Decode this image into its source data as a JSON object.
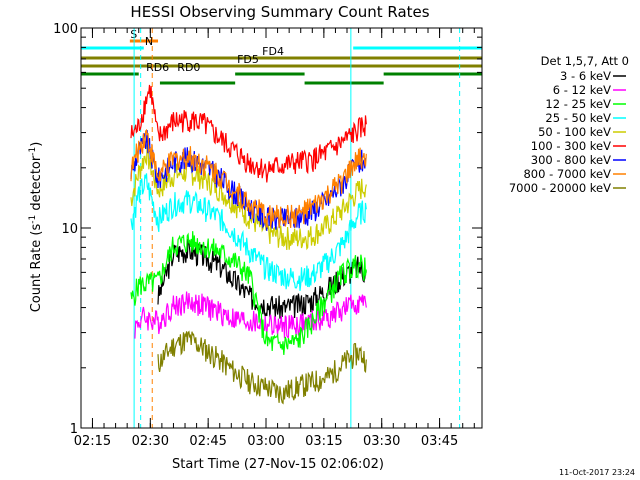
{
  "chart_data": {
    "type": "line",
    "title": "HESSI Observing Summary Count Rates",
    "xlabel": "Start Time (27-Nov-15 02:06:02)",
    "ylabel_main": "Count Rate (s",
    "ylabel_sup1": "-1",
    "ylabel_mid": " detector",
    "ylabel_sup2": "-1",
    "ylabel_end": ")",
    "yscale": "log",
    "ylim": [
      1,
      100
    ],
    "xlim_min": [
      6.03,
      110
    ],
    "y_ticks": [
      {
        "v": 1,
        "label": "1"
      },
      {
        "v": 10,
        "label": "10"
      },
      {
        "v": 100,
        "label": "100"
      }
    ],
    "x_ticks": [
      {
        "v": 9,
        "label": "02:15"
      },
      {
        "v": 24,
        "label": "02:30"
      },
      {
        "v": 39,
        "label": "02:45"
      },
      {
        "v": 54,
        "label": "03:00"
      },
      {
        "v": 69,
        "label": "03:15"
      },
      {
        "v": 84,
        "label": "03:30"
      },
      {
        "v": 99,
        "label": "03:45"
      }
    ],
    "legend_title": "Det 1,5,7, Att 0",
    "legend_position": "right",
    "series": [
      {
        "name": "3 - 6 keV",
        "color": "#000000",
        "points": [
          [
            26,
            4.5
          ],
          [
            30,
            7.5
          ],
          [
            34,
            7.8
          ],
          [
            38,
            7.2
          ],
          [
            42,
            6.5
          ],
          [
            46,
            5.4
          ],
          [
            50,
            4.5
          ],
          [
            54,
            4.2
          ],
          [
            58,
            4.0
          ],
          [
            62,
            4.1
          ],
          [
            66,
            4.4
          ],
          [
            70,
            5.0
          ],
          [
            74,
            5.8
          ],
          [
            78,
            6.4
          ],
          [
            80,
            6.0
          ]
        ]
      },
      {
        "name": "6 - 12 keV",
        "color": "#ff00ff",
        "points": [
          [
            20,
            3.2
          ],
          [
            22,
            3.6
          ],
          [
            26,
            3.4
          ],
          [
            30,
            4.1
          ],
          [
            34,
            4.3
          ],
          [
            38,
            4.1
          ],
          [
            42,
            3.8
          ],
          [
            46,
            3.5
          ],
          [
            50,
            3.4
          ],
          [
            54,
            3.3
          ],
          [
            58,
            3.2
          ],
          [
            62,
            3.3
          ],
          [
            66,
            3.4
          ],
          [
            70,
            3.6
          ],
          [
            74,
            3.9
          ],
          [
            78,
            4.3
          ],
          [
            80,
            4.0
          ]
        ]
      },
      {
        "name": "12 - 25 keV",
        "color": "#00ff00",
        "points": [
          [
            19,
            4.3
          ],
          [
            21,
            5.2
          ],
          [
            26,
            5.4
          ],
          [
            30,
            8.2
          ],
          [
            34,
            8.6
          ],
          [
            38,
            8.2
          ],
          [
            42,
            7.6
          ],
          [
            46,
            6.8
          ],
          [
            50,
            5.6
          ],
          [
            54,
            2.7
          ],
          [
            58,
            2.6
          ],
          [
            62,
            2.7
          ],
          [
            66,
            3.4
          ],
          [
            70,
            4.6
          ],
          [
            74,
            6.0
          ],
          [
            78,
            6.6
          ],
          [
            80,
            6.2
          ]
        ]
      },
      {
        "name": "25 - 50 keV",
        "color": "#00ffff",
        "points": [
          [
            19,
            10.5
          ],
          [
            21,
            15
          ],
          [
            23,
            17
          ],
          [
            26,
            11
          ],
          [
            30,
            13.2
          ],
          [
            34,
            13.8
          ],
          [
            38,
            12.6
          ],
          [
            42,
            11.2
          ],
          [
            46,
            9.4
          ],
          [
            50,
            7.6
          ],
          [
            54,
            6.3
          ],
          [
            58,
            5.8
          ],
          [
            62,
            5.6
          ],
          [
            66,
            5.8
          ],
          [
            70,
            6.8
          ],
          [
            74,
            8.4
          ],
          [
            78,
            11.8
          ],
          [
            80,
            12.4
          ]
        ]
      },
      {
        "name": "50 - 100 keV",
        "color": "#cccc00",
        "points": [
          [
            19,
            14
          ],
          [
            21,
            19
          ],
          [
            23,
            24
          ],
          [
            26,
            15.5
          ],
          [
            30,
            18.5
          ],
          [
            34,
            19.2
          ],
          [
            38,
            17.6
          ],
          [
            42,
            15.6
          ],
          [
            46,
            13.2
          ],
          [
            50,
            11.2
          ],
          [
            54,
            9.6
          ],
          [
            58,
            9.0
          ],
          [
            62,
            8.9
          ],
          [
            66,
            9.2
          ],
          [
            70,
            10.4
          ],
          [
            74,
            12.4
          ],
          [
            78,
            15.5
          ],
          [
            80,
            16.5
          ]
        ]
      },
      {
        "name": "100 - 300 keV",
        "color": "#ff0000",
        "points": [
          [
            19,
            29
          ],
          [
            21,
            32
          ],
          [
            23,
            45
          ],
          [
            24,
            50
          ],
          [
            26,
            28
          ],
          [
            30,
            34
          ],
          [
            34,
            35
          ],
          [
            38,
            33
          ],
          [
            42,
            28
          ],
          [
            46,
            24
          ],
          [
            50,
            21
          ],
          [
            54,
            19.6
          ],
          [
            58,
            20.5
          ],
          [
            62,
            21.2
          ],
          [
            66,
            22
          ],
          [
            70,
            24
          ],
          [
            74,
            27
          ],
          [
            78,
            31
          ],
          [
            80,
            33
          ]
        ]
      },
      {
        "name": "300 - 800 keV",
        "color": "#0000ff",
        "points": [
          [
            19,
            19
          ],
          [
            21,
            24
          ],
          [
            23,
            28
          ],
          [
            26,
            17.5
          ],
          [
            30,
            21.5
          ],
          [
            34,
            22.5
          ],
          [
            38,
            20.5
          ],
          [
            42,
            18
          ],
          [
            46,
            15
          ],
          [
            50,
            12.6
          ],
          [
            54,
            11.2
          ],
          [
            58,
            11.0
          ],
          [
            62,
            11.2
          ],
          [
            66,
            12.2
          ],
          [
            70,
            14
          ],
          [
            74,
            17
          ],
          [
            78,
            21
          ],
          [
            80,
            22.5
          ]
        ]
      },
      {
        "name": "800 - 7000 keV",
        "color": "#ff8000",
        "points": [
          [
            19,
            19.5
          ],
          [
            21,
            25
          ],
          [
            23,
            30
          ],
          [
            26,
            18
          ],
          [
            30,
            22
          ],
          [
            34,
            23
          ],
          [
            38,
            21
          ],
          [
            42,
            18.5
          ],
          [
            46,
            15.5
          ],
          [
            50,
            13
          ],
          [
            54,
            11.6
          ],
          [
            58,
            11.4
          ],
          [
            62,
            11.6
          ],
          [
            66,
            12.6
          ],
          [
            70,
            14.5
          ],
          [
            74,
            17.5
          ],
          [
            78,
            22
          ],
          [
            80,
            23.5
          ]
        ]
      },
      {
        "name": "7000 - 20000 keV",
        "color": "#808000",
        "points": [
          [
            26,
            2.1
          ],
          [
            30,
            2.6
          ],
          [
            34,
            2.8
          ],
          [
            38,
            2.5
          ],
          [
            42,
            2.2
          ],
          [
            46,
            1.9
          ],
          [
            50,
            1.7
          ],
          [
            54,
            1.6
          ],
          [
            58,
            1.5
          ],
          [
            62,
            1.6
          ],
          [
            66,
            1.7
          ],
          [
            70,
            1.8
          ],
          [
            74,
            2.1
          ],
          [
            78,
            2.4
          ],
          [
            80,
            2.2
          ]
        ]
      }
    ],
    "flag_bars": [
      {
        "label": "S",
        "color": "#ff8000",
        "x_start": 18.7,
        "x_end": 26,
        "level": 1,
        "label_x": 18.8
      },
      {
        "label": "N",
        "color": "#00ffff",
        "x_start": 6.03,
        "x_end": 22.3,
        "level": 2,
        "label_x": 22.6
      },
      {
        "label": "",
        "color": "#00ffff",
        "x_start": 76.6,
        "x_end": 110,
        "level": 2,
        "label_x": null
      },
      {
        "label": "FD4",
        "color": "#808000",
        "x_start": 6.03,
        "x_end": 110,
        "level": 3,
        "label_x": 53
      },
      {
        "label": "FD5",
        "color": "#808000",
        "x_start": 6.03,
        "x_end": 110,
        "level": 4,
        "label_x": 46.5
      },
      {
        "label": "RD0",
        "color": "#008000",
        "x_start": 6.03,
        "x_end": 21,
        "level": 5,
        "label_x": 31
      },
      {
        "label": "",
        "color": "#008000",
        "x_start": 26.5,
        "x_end": 46,
        "level": 6,
        "label_x": null
      },
      {
        "label": "",
        "color": "#008000",
        "x_start": 46,
        "x_end": 64,
        "level": 5,
        "label_x": null
      },
      {
        "label": "",
        "color": "#008000",
        "x_start": 64,
        "x_end": 84.5,
        "level": 6,
        "label_x": null
      },
      {
        "label": "RD6",
        "color": "#008000",
        "x_start": 84.5,
        "x_end": 110,
        "level": 5,
        "label_x": 22.9
      }
    ],
    "vertical_markers": [
      {
        "x": 19.8,
        "color": "#00ffff",
        "style": "solid"
      },
      {
        "x": 21.5,
        "color": "#00ffff",
        "style": "dashed"
      },
      {
        "x": 24.5,
        "color": "#ff8000",
        "style": "dashed"
      },
      {
        "x": 76.0,
        "color": "#00ffff",
        "style": "solid"
      },
      {
        "x": 104.2,
        "color": "#00ffff",
        "style": "dashed"
      }
    ],
    "footer": "11-Oct-2017 23:24"
  }
}
